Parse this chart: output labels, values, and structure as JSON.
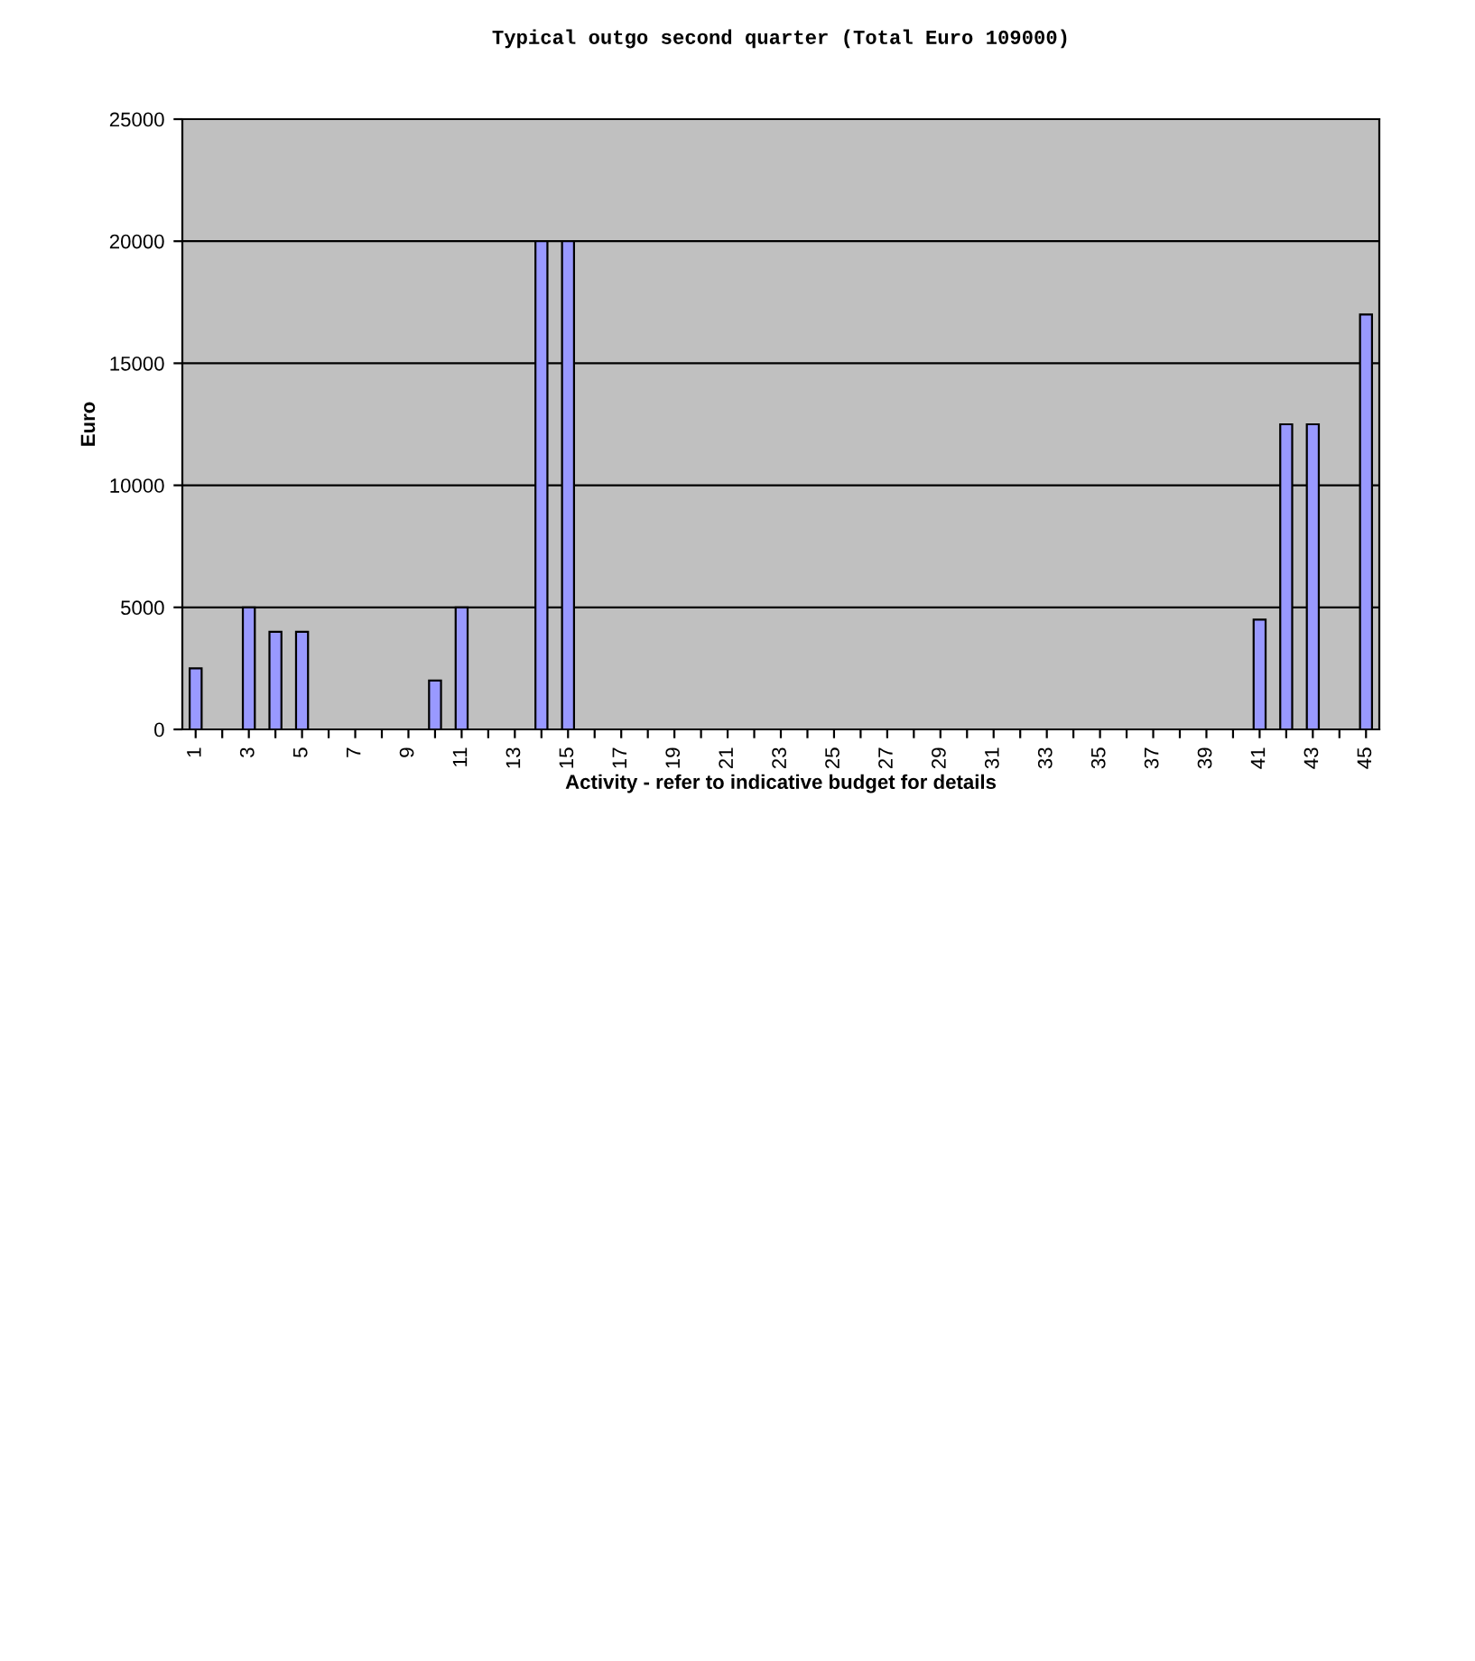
{
  "chart_data": {
    "type": "bar",
    "title": "Typical outgo second quarter (Total Euro 109000)",
    "xlabel": "Activity - refer to indicative budget for details",
    "ylabel": "Euro",
    "categories": [
      "1",
      null,
      "3",
      null,
      "5",
      null,
      "7",
      null,
      "9",
      null,
      "11",
      null,
      "13",
      null,
      "15",
      null,
      "17",
      null,
      "19",
      null,
      "21",
      null,
      "23",
      null,
      "25",
      null,
      "27",
      null,
      "29",
      null,
      "31",
      null,
      "33",
      null,
      "35",
      null,
      "37",
      null,
      "39",
      null,
      "41",
      null,
      "43",
      null,
      "45"
    ],
    "values": [
      2500,
      null,
      5000,
      4000,
      4000,
      null,
      null,
      null,
      null,
      2000,
      5000,
      null,
      null,
      20000,
      20000,
      null,
      null,
      null,
      null,
      null,
      null,
      null,
      null,
      null,
      null,
      null,
      null,
      null,
      null,
      null,
      null,
      null,
      null,
      null,
      null,
      null,
      null,
      null,
      null,
      null,
      4500,
      12500,
      12500,
      null,
      17000
    ],
    "color": "#9999ff",
    "ylim": [
      0,
      25000
    ],
    "yticks": [
      0,
      5000,
      10000,
      15000,
      20000,
      25000
    ],
    "grid": "y",
    "legend": false
  }
}
